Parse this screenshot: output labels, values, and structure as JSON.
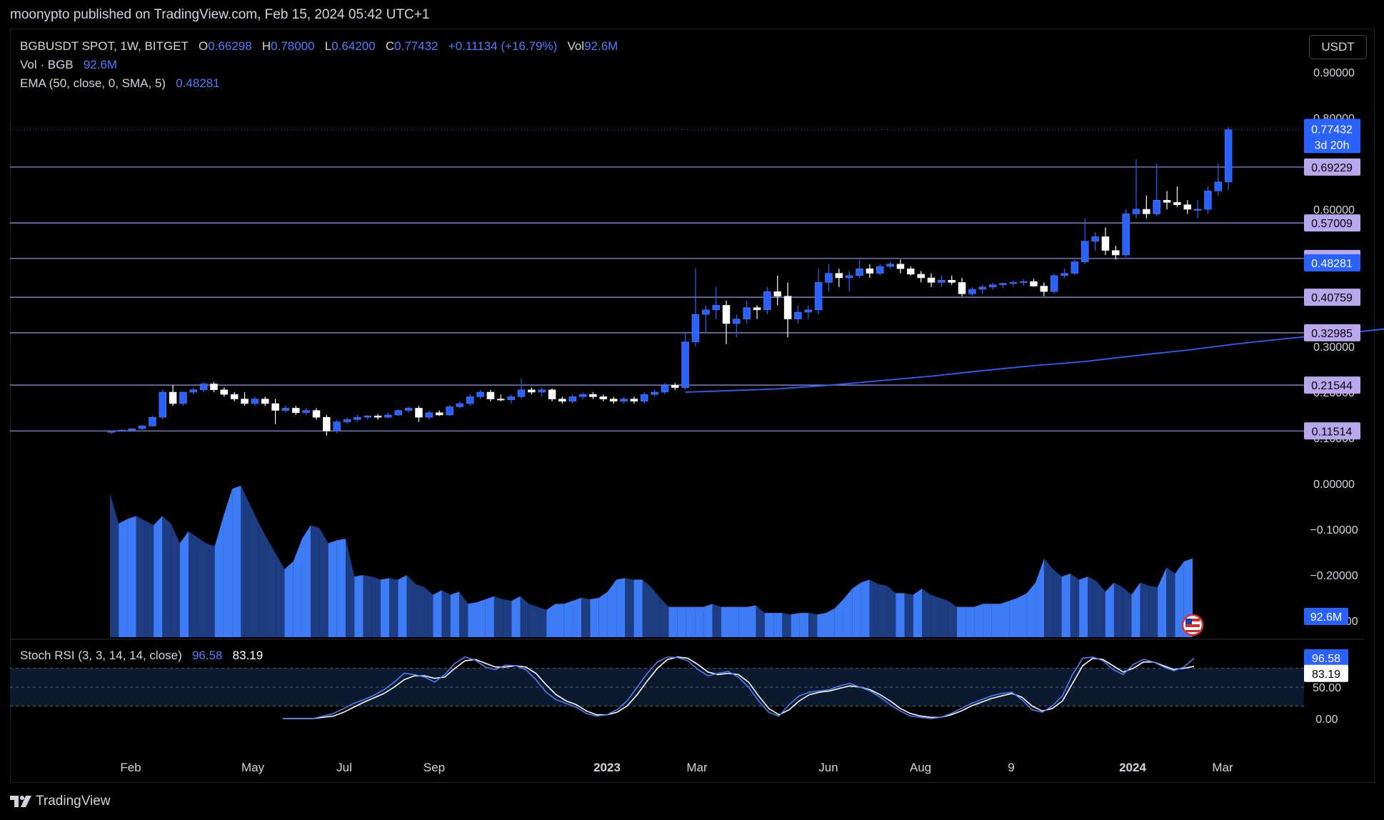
{
  "header": {
    "caption": "moonypto published on TradingView.com, Feb 15, 2024 05:42 UTC+1"
  },
  "legend": {
    "symbol": "BGBUSDT SPOT, 1W, BITGET",
    "o_label": "O",
    "o": "0.66298",
    "h_label": "H",
    "h": "0.78000",
    "l_label": "L",
    "l": "0.64200",
    "c_label": "C",
    "c": "0.77432",
    "change": "+0.11134 (+16.79%)",
    "vol_label": "Vol",
    "vol": "92.6M",
    "vol_line_label": "Vol · BGB",
    "vol_line_value": "92.6M",
    "ema_label": "EMA (50, close, 0, SMA, 5)",
    "ema_value": "0.48281"
  },
  "stoch": {
    "label": "Stoch RSI (3, 3, 14, 14, close)",
    "k": "96.58",
    "d": "83.19"
  },
  "currency_button": "USDT",
  "footer": {
    "brand": "TradingView"
  },
  "colors": {
    "up": "#2962ff",
    "down": "#ffffff",
    "ema": "#2962ff",
    "hline": "#9598f0",
    "badge": "#b9a7ee",
    "volume": "#3d7bf7",
    "volume_dark": "#1d3c82"
  },
  "chart_data": {
    "type": "candlestick",
    "interval": "1W",
    "price_axis": {
      "ticks": [
        "0.90000",
        "0.80000",
        "0.60000",
        "0.30000",
        "0.20000",
        "0.10000",
        "0.00000",
        "−0.10000",
        "−0.20000",
        "−0.30000"
      ],
      "tick_values": [
        0.9,
        0.8,
        0.6,
        0.3,
        0.2,
        0.1,
        0.0,
        -0.1,
        -0.2,
        -0.3
      ],
      "range": [
        -0.3,
        0.93
      ]
    },
    "time_axis": [
      "Feb",
      "May",
      "Jul",
      "Sep",
      "2023",
      "Mar",
      "Jun",
      "Aug",
      "9",
      "2024",
      "Mar"
    ],
    "horizontal_levels": [
      "0.69229",
      "0.57009",
      "0.49245",
      "0.40759",
      "0.32985",
      "0.21544",
      "0.11514"
    ],
    "level_values": [
      0.69229,
      0.57009,
      0.49245,
      0.40759,
      0.32985,
      0.21544,
      0.11514
    ],
    "last_price": {
      "value": "0.77432",
      "countdown": "3d 20h"
    },
    "ema_last": "0.48281",
    "volume_last": "92.6M",
    "candles": [
      [
        0.112,
        0.116,
        0.108,
        0.115
      ],
      [
        0.115,
        0.119,
        0.113,
        0.117
      ],
      [
        0.117,
        0.121,
        0.115,
        0.12
      ],
      [
        0.12,
        0.128,
        0.118,
        0.126
      ],
      [
        0.126,
        0.148,
        0.125,
        0.145
      ],
      [
        0.145,
        0.205,
        0.14,
        0.2
      ],
      [
        0.2,
        0.215,
        0.17,
        0.175
      ],
      [
        0.175,
        0.2,
        0.17,
        0.2
      ],
      [
        0.2,
        0.21,
        0.195,
        0.205
      ],
      [
        0.205,
        0.222,
        0.2,
        0.218
      ],
      [
        0.218,
        0.222,
        0.2,
        0.205
      ],
      [
        0.205,
        0.21,
        0.19,
        0.195
      ],
      [
        0.195,
        0.2,
        0.18,
        0.185
      ],
      [
        0.185,
        0.2,
        0.17,
        0.175
      ],
      [
        0.175,
        0.19,
        0.17,
        0.185
      ],
      [
        0.185,
        0.19,
        0.17,
        0.175
      ],
      [
        0.175,
        0.185,
        0.13,
        0.16
      ],
      [
        0.16,
        0.17,
        0.155,
        0.165
      ],
      [
        0.165,
        0.17,
        0.15,
        0.155
      ],
      [
        0.155,
        0.165,
        0.15,
        0.16
      ],
      [
        0.16,
        0.165,
        0.14,
        0.145
      ],
      [
        0.145,
        0.15,
        0.105,
        0.115
      ],
      [
        0.115,
        0.14,
        0.11,
        0.135
      ],
      [
        0.135,
        0.145,
        0.13,
        0.14
      ],
      [
        0.14,
        0.15,
        0.135,
        0.145
      ],
      [
        0.145,
        0.15,
        0.14,
        0.148
      ],
      [
        0.148,
        0.152,
        0.14,
        0.145
      ],
      [
        0.145,
        0.155,
        0.143,
        0.15
      ],
      [
        0.15,
        0.162,
        0.148,
        0.16
      ],
      [
        0.16,
        0.168,
        0.155,
        0.165
      ],
      [
        0.165,
        0.17,
        0.135,
        0.145
      ],
      [
        0.145,
        0.16,
        0.14,
        0.155
      ],
      [
        0.155,
        0.16,
        0.148,
        0.15
      ],
      [
        0.15,
        0.172,
        0.148,
        0.168
      ],
      [
        0.168,
        0.18,
        0.165,
        0.175
      ],
      [
        0.175,
        0.195,
        0.17,
        0.19
      ],
      [
        0.19,
        0.205,
        0.185,
        0.2
      ],
      [
        0.2,
        0.205,
        0.18,
        0.185
      ],
      [
        0.185,
        0.195,
        0.18,
        0.183
      ],
      [
        0.183,
        0.195,
        0.175,
        0.19
      ],
      [
        0.19,
        0.23,
        0.185,
        0.205
      ],
      [
        0.205,
        0.21,
        0.195,
        0.2
      ],
      [
        0.2,
        0.21,
        0.19,
        0.205
      ],
      [
        0.205,
        0.208,
        0.18,
        0.185
      ],
      [
        0.185,
        0.19,
        0.175,
        0.18
      ],
      [
        0.18,
        0.195,
        0.175,
        0.19
      ],
      [
        0.19,
        0.2,
        0.185,
        0.195
      ],
      [
        0.195,
        0.2,
        0.185,
        0.19
      ],
      [
        0.19,
        0.195,
        0.18,
        0.185
      ],
      [
        0.185,
        0.19,
        0.175,
        0.18
      ],
      [
        0.18,
        0.19,
        0.175,
        0.185
      ],
      [
        0.185,
        0.19,
        0.175,
        0.18
      ],
      [
        0.18,
        0.2,
        0.175,
        0.195
      ],
      [
        0.195,
        0.205,
        0.19,
        0.2
      ],
      [
        0.2,
        0.22,
        0.195,
        0.215
      ],
      [
        0.215,
        0.22,
        0.205,
        0.21
      ],
      [
        0.21,
        0.33,
        0.205,
        0.31
      ],
      [
        0.31,
        0.47,
        0.3,
        0.37
      ],
      [
        0.37,
        0.39,
        0.33,
        0.38
      ],
      [
        0.38,
        0.43,
        0.36,
        0.39
      ],
      [
        0.39,
        0.4,
        0.305,
        0.35
      ],
      [
        0.35,
        0.37,
        0.32,
        0.36
      ],
      [
        0.36,
        0.4,
        0.35,
        0.385
      ],
      [
        0.385,
        0.39,
        0.36,
        0.38
      ],
      [
        0.38,
        0.43,
        0.37,
        0.42
      ],
      [
        0.42,
        0.455,
        0.39,
        0.41
      ],
      [
        0.41,
        0.44,
        0.32,
        0.36
      ],
      [
        0.36,
        0.39,
        0.35,
        0.375
      ],
      [
        0.375,
        0.39,
        0.36,
        0.38
      ],
      [
        0.38,
        0.47,
        0.37,
        0.44
      ],
      [
        0.44,
        0.48,
        0.42,
        0.46
      ],
      [
        0.46,
        0.47,
        0.43,
        0.45
      ],
      [
        0.45,
        0.465,
        0.42,
        0.455
      ],
      [
        0.455,
        0.49,
        0.45,
        0.47
      ],
      [
        0.47,
        0.48,
        0.45,
        0.46
      ],
      [
        0.46,
        0.48,
        0.455,
        0.475
      ],
      [
        0.475,
        0.485,
        0.47,
        0.48
      ],
      [
        0.48,
        0.49,
        0.46,
        0.47
      ],
      [
        0.47,
        0.475,
        0.455,
        0.458
      ],
      [
        0.458,
        0.465,
        0.44,
        0.45
      ],
      [
        0.45,
        0.46,
        0.43,
        0.44
      ],
      [
        0.44,
        0.455,
        0.43,
        0.445
      ],
      [
        0.445,
        0.455,
        0.435,
        0.44
      ],
      [
        0.44,
        0.45,
        0.41,
        0.415
      ],
      [
        0.415,
        0.43,
        0.41,
        0.425
      ],
      [
        0.425,
        0.435,
        0.415,
        0.43
      ],
      [
        0.43,
        0.44,
        0.425,
        0.435
      ],
      [
        0.435,
        0.44,
        0.428,
        0.438
      ],
      [
        0.438,
        0.445,
        0.43,
        0.44
      ],
      [
        0.44,
        0.448,
        0.432,
        0.442
      ],
      [
        0.442,
        0.448,
        0.43,
        0.432
      ],
      [
        0.432,
        0.44,
        0.41,
        0.42
      ],
      [
        0.42,
        0.46,
        0.415,
        0.455
      ],
      [
        0.455,
        0.47,
        0.45,
        0.46
      ],
      [
        0.46,
        0.49,
        0.455,
        0.485
      ],
      [
        0.485,
        0.58,
        0.48,
        0.53
      ],
      [
        0.53,
        0.55,
        0.51,
        0.54
      ],
      [
        0.54,
        0.56,
        0.5,
        0.51
      ],
      [
        0.51,
        0.52,
        0.49,
        0.5
      ],
      [
        0.5,
        0.6,
        0.495,
        0.59
      ],
      [
        0.59,
        0.71,
        0.58,
        0.6
      ],
      [
        0.6,
        0.63,
        0.58,
        0.59
      ],
      [
        0.59,
        0.7,
        0.585,
        0.62
      ],
      [
        0.62,
        0.64,
        0.6,
        0.615
      ],
      [
        0.615,
        0.65,
        0.605,
        0.61
      ],
      [
        0.61,
        0.62,
        0.59,
        0.6
      ],
      [
        0.6,
        0.62,
        0.58,
        0.6
      ],
      [
        0.6,
        0.65,
        0.59,
        0.64
      ],
      [
        0.64,
        0.7,
        0.63,
        0.66
      ],
      [
        0.66,
        0.78,
        0.642,
        0.774
      ]
    ],
    "ema": [
      [
        56,
        0.2
      ],
      [
        60,
        0.203
      ],
      [
        65,
        0.207
      ],
      [
        70,
        0.215
      ],
      [
        75,
        0.225
      ],
      [
        80,
        0.235
      ],
      [
        85,
        0.247
      ],
      [
        90,
        0.258
      ],
      [
        95,
        0.267
      ],
      [
        100,
        0.28
      ],
      [
        105,
        0.292
      ],
      [
        110,
        0.306
      ],
      [
        115,
        0.318
      ],
      [
        120,
        0.328
      ],
      [
        125,
        0.34
      ],
      [
        130,
        0.348
      ],
      [
        135,
        0.356
      ],
      [
        140,
        0.363
      ],
      [
        145,
        0.368
      ],
      [
        150,
        0.372
      ],
      [
        155,
        0.376
      ],
      [
        160,
        0.38
      ],
      [
        165,
        0.383
      ],
      [
        170,
        0.386
      ],
      [
        175,
        0.389
      ],
      [
        180,
        0.391
      ],
      [
        185,
        0.393
      ],
      [
        190,
        0.397
      ],
      [
        195,
        0.404
      ],
      [
        200,
        0.414
      ],
      [
        205,
        0.423
      ],
      [
        210,
        0.432
      ],
      [
        215,
        0.443
      ],
      [
        220,
        0.455
      ],
      [
        225,
        0.466
      ],
      [
        230,
        0.476
      ],
      [
        233,
        0.483
      ]
    ],
    "volume": [
      95,
      75,
      78,
      80,
      77,
      74,
      80,
      75,
      62,
      70,
      66,
      62,
      60,
      80,
      98,
      100,
      88,
      76,
      65,
      55,
      45,
      50,
      65,
      74,
      72,
      62,
      64,
      65,
      40,
      41,
      40,
      38,
      39,
      38,
      41,
      35,
      33,
      28,
      31,
      28,
      30,
      22,
      23,
      25,
      27,
      25,
      24,
      27,
      22,
      20,
      18,
      22,
      22,
      24,
      26,
      25,
      26,
      30,
      38,
      39,
      38,
      38,
      33,
      26,
      20,
      20,
      20,
      20,
      20,
      22,
      20,
      20,
      20,
      20,
      21,
      16,
      16,
      16,
      15,
      16,
      16,
      15,
      16,
      19,
      25,
      32,
      36,
      38,
      35,
      34,
      29,
      29,
      28,
      32,
      28,
      26,
      24,
      20,
      20,
      20,
      22,
      22,
      22,
      24,
      26,
      29,
      36,
      52,
      45,
      40,
      42,
      38,
      40,
      37,
      30,
      36,
      33,
      28,
      36,
      34,
      33,
      46,
      42,
      50,
      52
    ],
    "stoch_k": [
      0,
      0,
      0,
      0,
      4,
      8,
      16,
      24,
      30,
      37,
      46,
      58,
      72,
      70,
      66,
      58,
      70,
      88,
      98,
      93,
      82,
      78,
      85,
      84,
      78,
      62,
      42,
      30,
      24,
      18,
      8,
      4,
      6,
      14,
      28,
      50,
      72,
      90,
      98,
      97,
      92,
      78,
      68,
      72,
      75,
      66,
      50,
      28,
      10,
      4,
      22,
      36,
      42,
      44,
      46,
      52,
      56,
      50,
      44,
      34,
      22,
      12,
      4,
      2,
      0,
      2,
      8,
      16,
      24,
      30,
      36,
      40,
      42,
      30,
      14,
      10,
      20,
      36,
      70,
      96,
      98,
      92,
      78,
      70,
      86,
      94,
      90,
      82,
      76,
      82,
      96
    ],
    "stoch_d": [
      0,
      0,
      0,
      0,
      2,
      4,
      10,
      18,
      26,
      33,
      40,
      50,
      62,
      68,
      68,
      64,
      66,
      80,
      92,
      94,
      88,
      82,
      82,
      84,
      82,
      72,
      54,
      38,
      28,
      22,
      12,
      6,
      6,
      10,
      20,
      38,
      60,
      80,
      94,
      98,
      96,
      86,
      74,
      70,
      72,
      70,
      58,
      36,
      16,
      6,
      14,
      28,
      38,
      42,
      44,
      48,
      52,
      50,
      46,
      38,
      28,
      16,
      8,
      4,
      2,
      2,
      6,
      12,
      20,
      26,
      32,
      36,
      40,
      34,
      20,
      12,
      16,
      28,
      56,
      84,
      96,
      94,
      84,
      74,
      80,
      90,
      90,
      84,
      78,
      80,
      83
    ],
    "stoch_axis": [
      "50.00",
      "0.00"
    ],
    "stoch_k_last": "96.58",
    "stoch_d_last": "83.19"
  }
}
